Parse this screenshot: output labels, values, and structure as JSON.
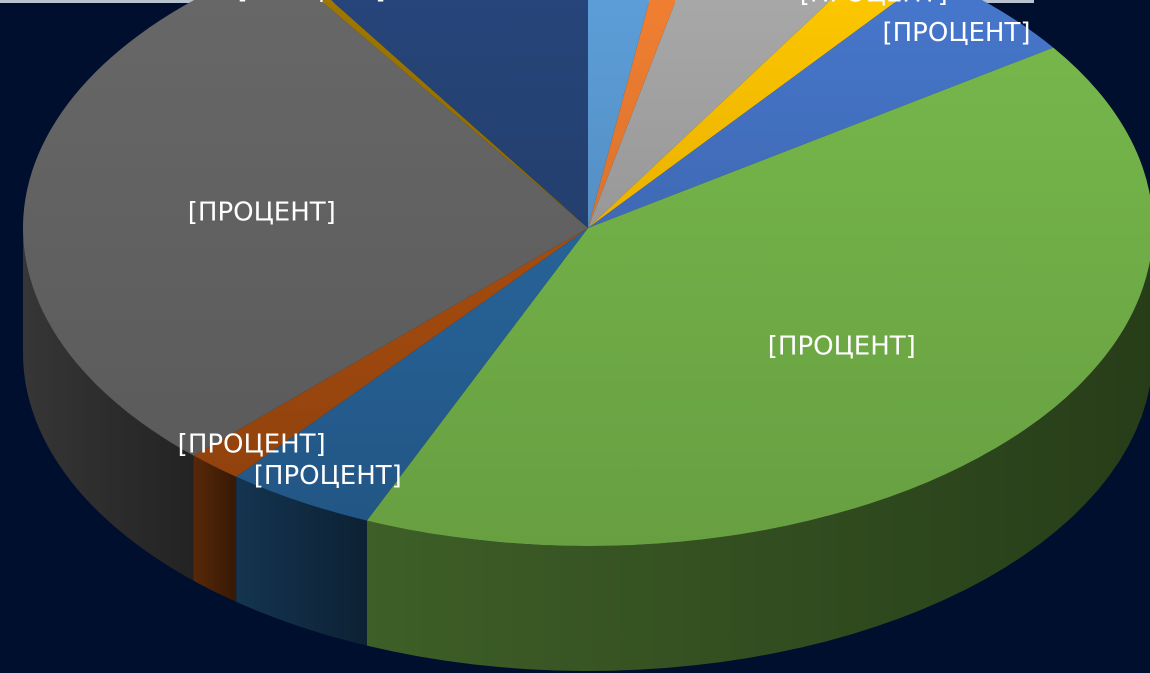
{
  "chart_data": {
    "type": "pie",
    "title": "",
    "three_d": true,
    "legend": "none",
    "slices": [
      {
        "value": 2.4,
        "label": "[ПРОЦЕНТ]",
        "color": "#5b9bd5"
      },
      {
        "value": 1.0,
        "label": "[ПРОЦЕНТ]",
        "color": "#ed7d31"
      },
      {
        "value": 5.2,
        "label": "[ПРОЦЕНТ]",
        "color": "#a5a5a5"
      },
      {
        "value": 1.8,
        "label": "[ПРОЦЕНТ]",
        "color": "#ffc000"
      },
      {
        "value": 5.0,
        "label": "[ПРОЦЕНТ]",
        "color": "#4472c4"
      },
      {
        "value": 41.0,
        "label": "[ПРОЦЕНТ]",
        "color": "#70ad47"
      },
      {
        "value": 4.3,
        "label": "[ПРОЦЕНТ]",
        "color": "#255e91"
      },
      {
        "value": 1.6,
        "label": "[ПРОЦЕНТ]",
        "color": "#9e480e"
      },
      {
        "value": 28.4,
        "label": "[ПРОЦЕНТ]",
        "color": "#636363"
      },
      {
        "value": 0.3,
        "label": "[ПРОЦЕНТ]",
        "color": "#997300"
      },
      {
        "value": 9.0,
        "label": "[ПРОЦЕНТ]",
        "color": "#264478"
      }
    ]
  }
}
